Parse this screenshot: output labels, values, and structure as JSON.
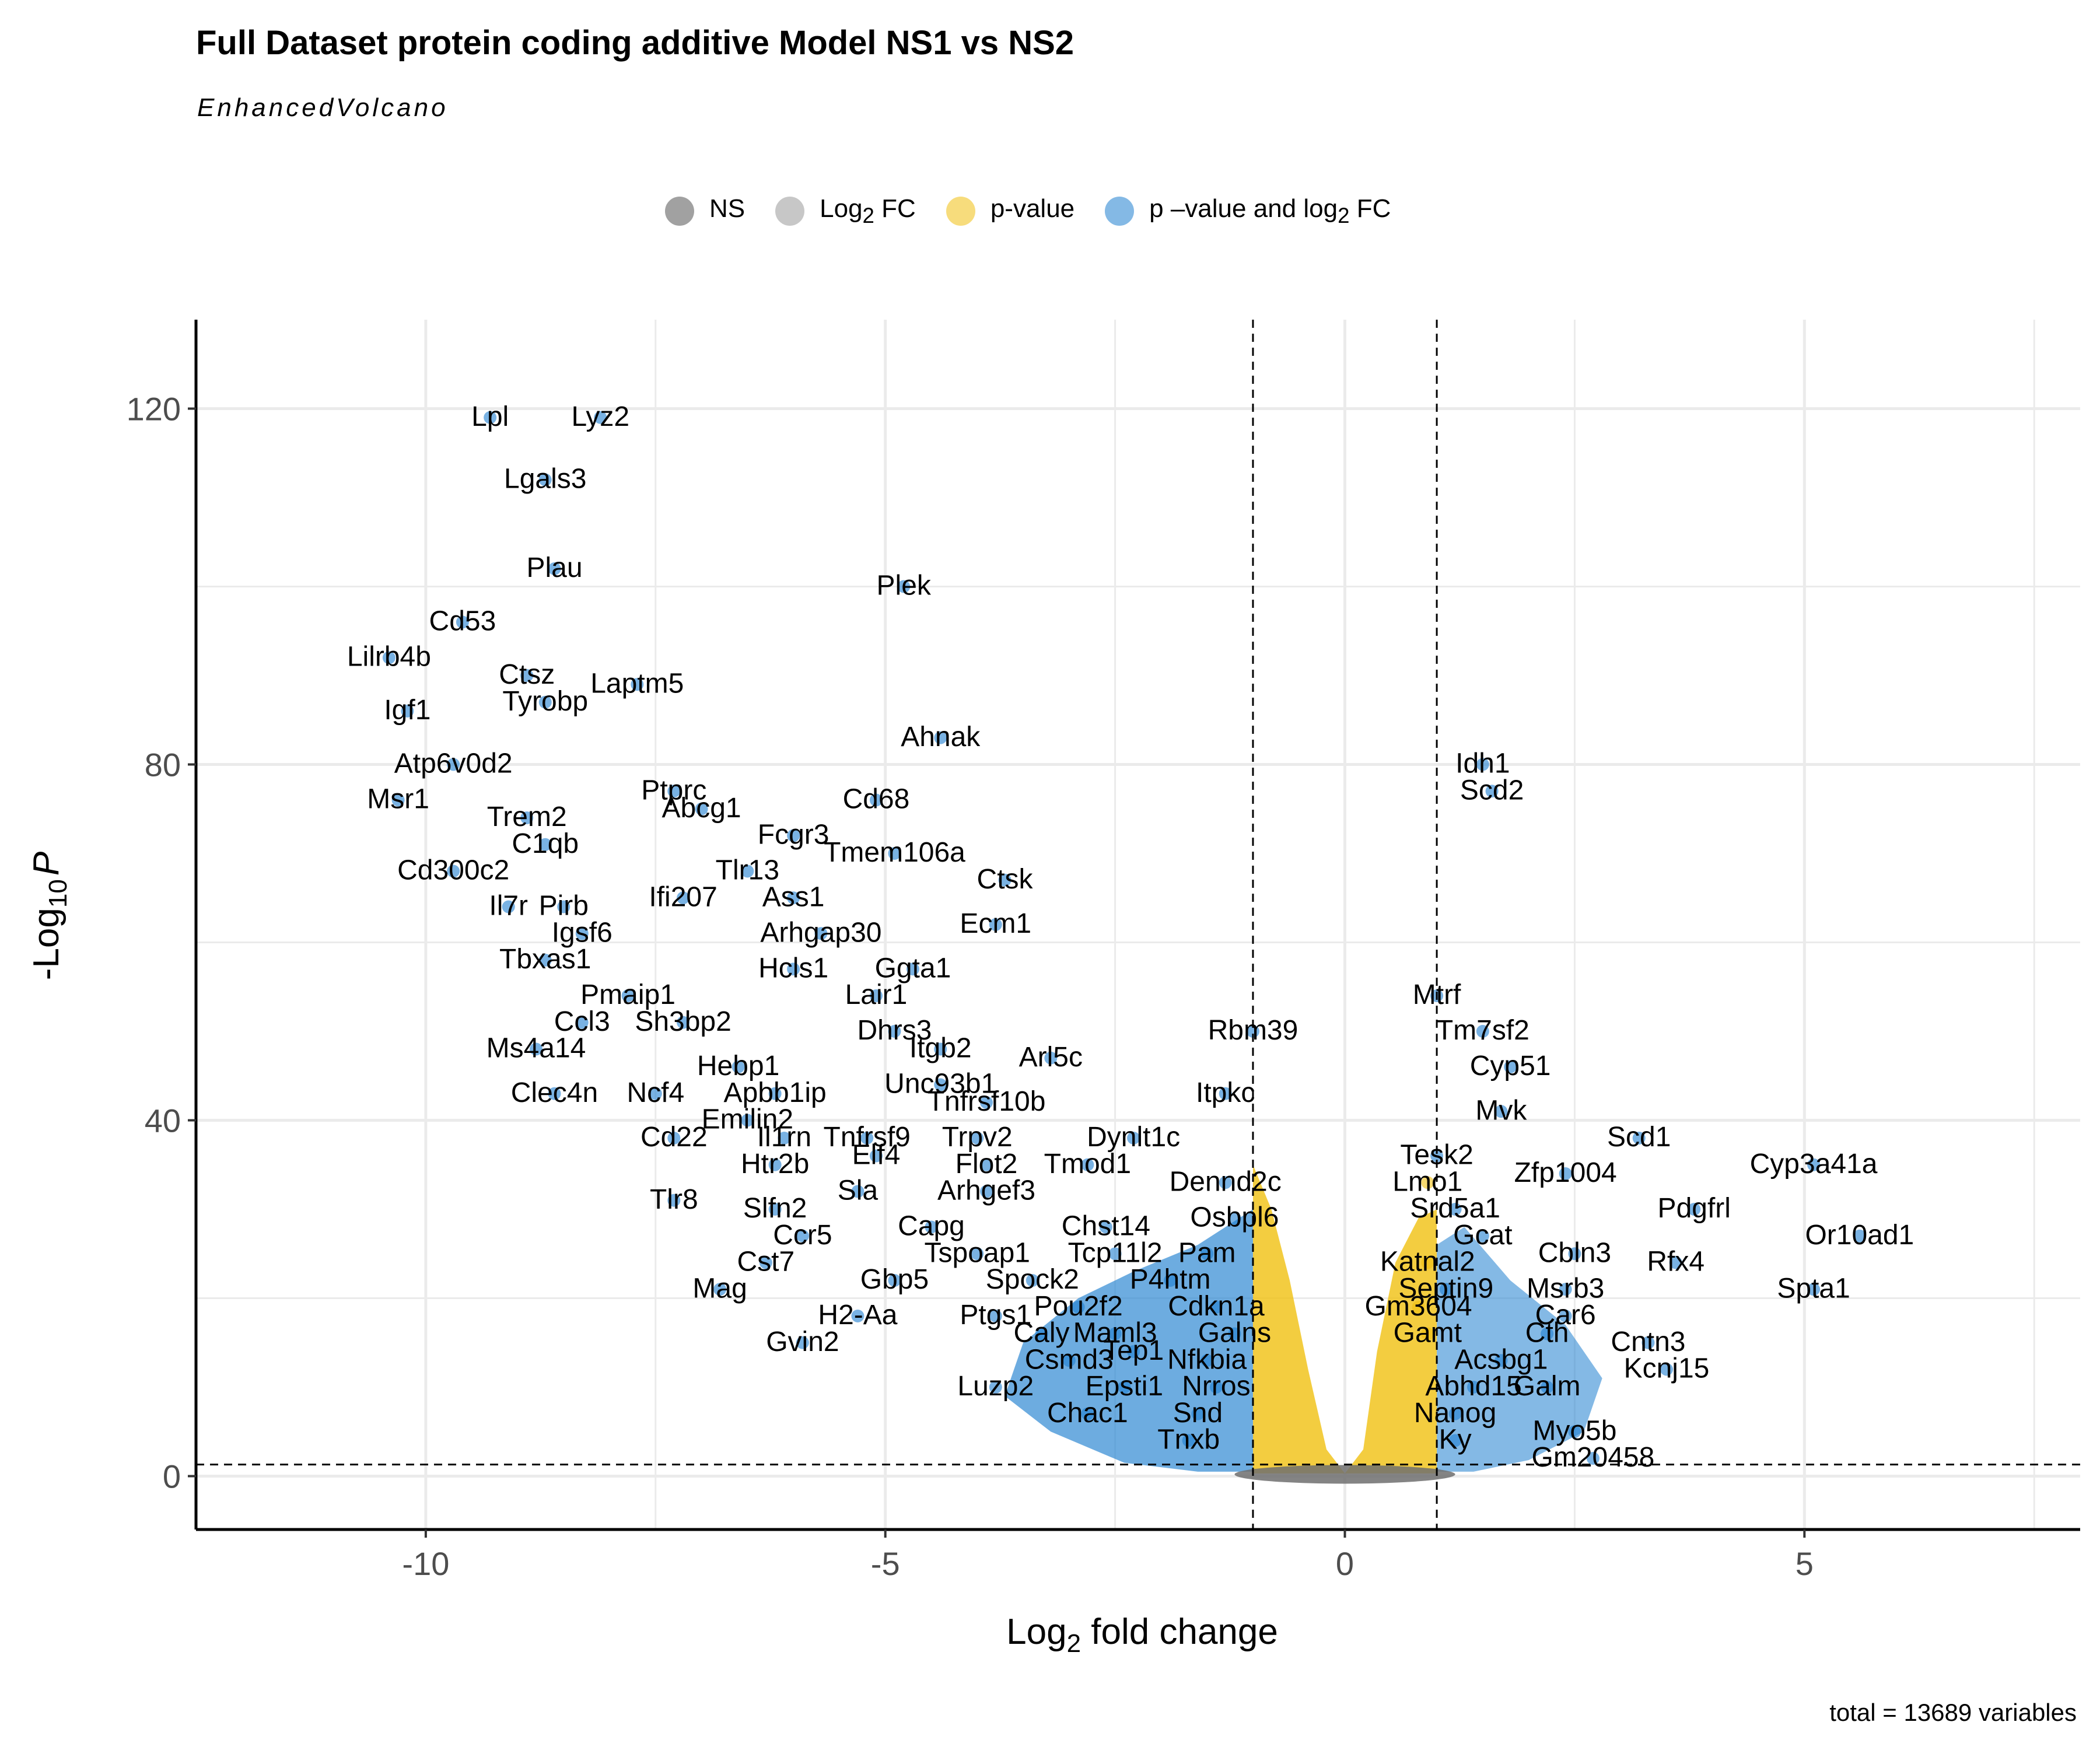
{
  "chart_data": {
    "type": "scatter",
    "title": "Full Dataset protein coding additive Model NS1 vs NS2",
    "subtitle": "EnhancedVolcano",
    "caption": "total = 13689 variables",
    "xlabel": {
      "main": "Log",
      "sub": "2",
      "rest": " fold change"
    },
    "ylabel": {
      "main": "-Log",
      "sub": "10",
      "italic": "P"
    },
    "xlim": [
      -12.5,
      8
    ],
    "ylim": [
      -6,
      130
    ],
    "x_ticks": [
      "-10",
      "-5",
      "0",
      "5"
    ],
    "y_ticks": [
      "0",
      "40",
      "80",
      "120"
    ],
    "grid": true,
    "legend_position": "top",
    "fc_cutoff": 1,
    "p_cutoff_neglog10": 1.3,
    "legend": [
      {
        "key": "ns",
        "label": "NS",
        "label_sub": "",
        "label_rest": "",
        "color": "#6e6e6e"
      },
      {
        "key": "fc",
        "label": "Log",
        "label_sub": "2",
        "label_rest": " FC",
        "color": "#a9a9a9"
      },
      {
        "key": "p",
        "label": "p-value",
        "label_sub": "",
        "label_rest": "",
        "color": "#f0c010"
      },
      {
        "key": "pfc",
        "label": "p –value and log",
        "label_sub": "2",
        "label_rest": " FC",
        "color": "#1f7fd0"
      }
    ],
    "labeled_points": [
      {
        "label": "Lpl",
        "x": -9.3,
        "y": 119
      },
      {
        "label": "Lyz2",
        "x": -8.1,
        "y": 119
      },
      {
        "label": "Lgals3",
        "x": -8.7,
        "y": 112
      },
      {
        "label": "Plau",
        "x": -8.6,
        "y": 102
      },
      {
        "label": "Plek",
        "x": -4.8,
        "y": 100
      },
      {
        "label": "Cd53",
        "x": -9.6,
        "y": 96
      },
      {
        "label": "Lilrb4b",
        "x": -10.4,
        "y": 92
      },
      {
        "label": "Ctsz",
        "x": -8.9,
        "y": 90
      },
      {
        "label": "Laptm5",
        "x": -7.7,
        "y": 89
      },
      {
        "label": "Igf1",
        "x": -10.2,
        "y": 86
      },
      {
        "label": "Tyrobp",
        "x": -8.7,
        "y": 87
      },
      {
        "label": "Ahnak",
        "x": -4.4,
        "y": 83
      },
      {
        "label": "Atp6v0d2",
        "x": -9.7,
        "y": 80
      },
      {
        "label": "Idh1",
        "x": 1.5,
        "y": 80
      },
      {
        "label": "Scd2",
        "x": 1.6,
        "y": 77
      },
      {
        "label": "Ptprc",
        "x": -7.3,
        "y": 77
      },
      {
        "label": "Cd68",
        "x": -5.1,
        "y": 76
      },
      {
        "label": "Msr1",
        "x": -10.3,
        "y": 76
      },
      {
        "label": "Abcg1",
        "x": -7.0,
        "y": 75
      },
      {
        "label": "Trem2",
        "x": -8.9,
        "y": 74
      },
      {
        "label": "Fcgr3",
        "x": -6.0,
        "y": 72
      },
      {
        "label": "C1qb",
        "x": -8.7,
        "y": 71
      },
      {
        "label": "Tmem106a",
        "x": -4.9,
        "y": 70
      },
      {
        "label": "Tlr13",
        "x": -6.5,
        "y": 68
      },
      {
        "label": "Cd300c2",
        "x": -9.7,
        "y": 68
      },
      {
        "label": "Ctsk",
        "x": -3.7,
        "y": 67
      },
      {
        "label": "Ifi207",
        "x": -7.2,
        "y": 65
      },
      {
        "label": "Ass1",
        "x": -6.0,
        "y": 65
      },
      {
        "label": "Il7r",
        "x": -9.1,
        "y": 64
      },
      {
        "label": "Pirb",
        "x": -8.5,
        "y": 64
      },
      {
        "label": "Ecm1",
        "x": -3.8,
        "y": 62
      },
      {
        "label": "Igsf6",
        "x": -8.3,
        "y": 61
      },
      {
        "label": "Arhgap30",
        "x": -5.7,
        "y": 61
      },
      {
        "label": "Tbxas1",
        "x": -8.7,
        "y": 58
      },
      {
        "label": "Hcls1",
        "x": -6.0,
        "y": 57
      },
      {
        "label": "Ggta1",
        "x": -4.7,
        "y": 57
      },
      {
        "label": "Pmaip1",
        "x": -7.8,
        "y": 54
      },
      {
        "label": "Lair1",
        "x": -5.1,
        "y": 54
      },
      {
        "label": "Mtrf",
        "x": 1.0,
        "y": 54
      },
      {
        "label": "Ccl3",
        "x": -8.3,
        "y": 51
      },
      {
        "label": "Sh3bp2",
        "x": -7.2,
        "y": 51
      },
      {
        "label": "Dhrs3",
        "x": -4.9,
        "y": 50
      },
      {
        "label": "Rbm39",
        "x": -1.0,
        "y": 50
      },
      {
        "label": "Tm7sf2",
        "x": 1.5,
        "y": 50
      },
      {
        "label": "Ms4a14",
        "x": -8.8,
        "y": 48
      },
      {
        "label": "Itgb2",
        "x": -4.4,
        "y": 48
      },
      {
        "label": "Arl5c",
        "x": -3.2,
        "y": 47
      },
      {
        "label": "Cyp51",
        "x": 1.8,
        "y": 46
      },
      {
        "label": "Hebp1",
        "x": -6.6,
        "y": 46
      },
      {
        "label": "Unc93b1",
        "x": -4.4,
        "y": 44
      },
      {
        "label": "Clec4n",
        "x": -8.6,
        "y": 43
      },
      {
        "label": "Ncf4",
        "x": -7.5,
        "y": 43
      },
      {
        "label": "Apbb1ip",
        "x": -6.2,
        "y": 43
      },
      {
        "label": "Itpkc",
        "x": -1.3,
        "y": 43
      },
      {
        "label": "Tnfrsf10b",
        "x": -3.9,
        "y": 42
      },
      {
        "label": "Mvk",
        "x": 1.7,
        "y": 41
      },
      {
        "label": "Emilin2",
        "x": -6.5,
        "y": 40
      },
      {
        "label": "Scd1",
        "x": 3.2,
        "y": 38
      },
      {
        "label": "Cd22",
        "x": -7.3,
        "y": 38
      },
      {
        "label": "Il1rn",
        "x": -6.1,
        "y": 38
      },
      {
        "label": "Tnfrsf9",
        "x": -5.2,
        "y": 38
      },
      {
        "label": "Trpv2",
        "x": -4.0,
        "y": 38
      },
      {
        "label": "Dynlt1c",
        "x": -2.3,
        "y": 38
      },
      {
        "label": "Tesk2",
        "x": 1.0,
        "y": 36
      },
      {
        "label": "Elf4",
        "x": -5.1,
        "y": 36
      },
      {
        "label": "Htr2b",
        "x": -6.2,
        "y": 35
      },
      {
        "label": "Flot2",
        "x": -3.9,
        "y": 35
      },
      {
        "label": "Tmod1",
        "x": -2.8,
        "y": 35
      },
      {
        "label": "Cyp3a41a",
        "x": 5.1,
        "y": 35
      },
      {
        "label": "Zfp1004",
        "x": 2.4,
        "y": 34
      },
      {
        "label": "Lmo1",
        "x": 0.9,
        "y": 33
      },
      {
        "label": "Dennd2c",
        "x": -1.3,
        "y": 33
      },
      {
        "label": "Sla",
        "x": -5.3,
        "y": 32
      },
      {
        "label": "Tlr8",
        "x": -7.3,
        "y": 31
      },
      {
        "label": "Arhgef3",
        "x": -3.9,
        "y": 32
      },
      {
        "label": "Slfn2",
        "x": -6.2,
        "y": 30
      },
      {
        "label": "Srd5a1",
        "x": 1.2,
        "y": 30
      },
      {
        "label": "Pdgfrl",
        "x": 3.8,
        "y": 30
      },
      {
        "label": "Osbpl6",
        "x": -1.2,
        "y": 29
      },
      {
        "label": "Capg",
        "x": -4.5,
        "y": 28
      },
      {
        "label": "Chst14",
        "x": -2.6,
        "y": 28
      },
      {
        "label": "Ccr5",
        "x": -5.9,
        "y": 27
      },
      {
        "label": "Gcat",
        "x": 1.5,
        "y": 27
      },
      {
        "label": "Or10ad1",
        "x": 5.6,
        "y": 27
      },
      {
        "label": "Tspoap1",
        "x": -4.0,
        "y": 25
      },
      {
        "label": "Tcp11l2",
        "x": -2.5,
        "y": 25
      },
      {
        "label": "Pam",
        "x": -1.5,
        "y": 25
      },
      {
        "label": "Cbln3",
        "x": 2.5,
        "y": 25
      },
      {
        "label": "Cst7",
        "x": -6.3,
        "y": 24
      },
      {
        "label": "Katnal2",
        "x": 0.9,
        "y": 24
      },
      {
        "label": "Rfx4",
        "x": 3.6,
        "y": 24
      },
      {
        "label": "Gbp5",
        "x": -4.9,
        "y": 22
      },
      {
        "label": "Spock2",
        "x": -3.4,
        "y": 22
      },
      {
        "label": "P4htm",
        "x": -1.9,
        "y": 22
      },
      {
        "label": "Mag",
        "x": -6.8,
        "y": 21
      },
      {
        "label": "Septin9",
        "x": 1.1,
        "y": 21
      },
      {
        "label": "Msrb3",
        "x": 2.4,
        "y": 21
      },
      {
        "label": "Spta1",
        "x": 5.1,
        "y": 21
      },
      {
        "label": "Pou2f2",
        "x": -2.9,
        "y": 19
      },
      {
        "label": "Cdkn1a",
        "x": -1.4,
        "y": 19
      },
      {
        "label": "Gm3604",
        "x": 0.8,
        "y": 19
      },
      {
        "label": "Car6",
        "x": 2.4,
        "y": 18
      },
      {
        "label": "H2-Aa",
        "x": -5.3,
        "y": 18
      },
      {
        "label": "Ptgs1",
        "x": -3.8,
        "y": 18
      },
      {
        "label": "Caly",
        "x": -3.3,
        "y": 16
      },
      {
        "label": "Maml3",
        "x": -2.5,
        "y": 16
      },
      {
        "label": "Galns",
        "x": -1.2,
        "y": 16
      },
      {
        "label": "Gamt",
        "x": 0.9,
        "y": 16
      },
      {
        "label": "Cth",
        "x": 2.2,
        "y": 16
      },
      {
        "label": "Gvin2",
        "x": -5.9,
        "y": 15
      },
      {
        "label": "Cntn3",
        "x": 3.3,
        "y": 15
      },
      {
        "label": "Tep1",
        "x": -2.3,
        "y": 14
      },
      {
        "label": "Csmd3",
        "x": -3.0,
        "y": 13
      },
      {
        "label": "Nfkbia",
        "x": -1.5,
        "y": 13
      },
      {
        "label": "Acsbg1",
        "x": 1.7,
        "y": 13
      },
      {
        "label": "Kcnj15",
        "x": 3.5,
        "y": 12
      },
      {
        "label": "Luzp2",
        "x": -3.8,
        "y": 10
      },
      {
        "label": "Epsti1",
        "x": -2.4,
        "y": 10
      },
      {
        "label": "Nrros",
        "x": -1.4,
        "y": 10
      },
      {
        "label": "Abhd15",
        "x": 1.4,
        "y": 10
      },
      {
        "label": "Galm",
        "x": 2.2,
        "y": 10
      },
      {
        "label": "Chac1",
        "x": -2.8,
        "y": 7
      },
      {
        "label": "Snd",
        "x": -1.6,
        "y": 7
      },
      {
        "label": "Nanog",
        "x": 1.2,
        "y": 7
      },
      {
        "label": "Myo5b",
        "x": 2.5,
        "y": 5
      },
      {
        "label": "Tnxb",
        "x": -1.7,
        "y": 4
      },
      {
        "label": "Ky",
        "x": 1.2,
        "y": 4
      },
      {
        "label": "Gm20458",
        "x": 2.7,
        "y": 2
      }
    ]
  }
}
